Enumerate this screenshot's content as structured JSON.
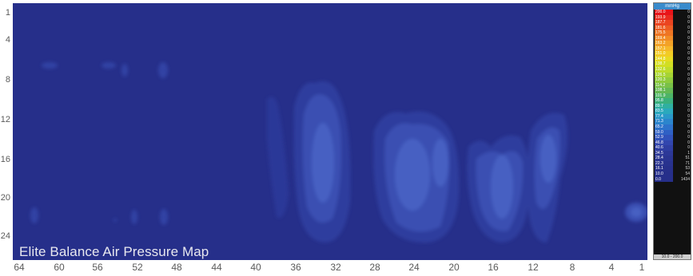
{
  "map_title": "Elite Balance Air Pressure Map",
  "y_ticks": [
    "1",
    "4",
    "8",
    "12",
    "16",
    "20",
    "24"
  ],
  "x_ticks": [
    "64",
    "60",
    "56",
    "52",
    "48",
    "44",
    "40",
    "36",
    "32",
    "28",
    "24",
    "20",
    "16",
    "12",
    "8",
    "4",
    "1"
  ],
  "colors": {
    "background": "#262f8a",
    "region_low": "#2f3d9e",
    "region_mid": "#3a4fb2",
    "region_high": "#4760c2"
  },
  "legend": {
    "unit": "mmHg",
    "range_label": "10.0 - 200.0",
    "rows": [
      {
        "value": "200.0",
        "count": "0",
        "color": "#e8141a"
      },
      {
        "value": "193.9",
        "count": "0",
        "color": "#e92a1e"
      },
      {
        "value": "187.7",
        "count": "0",
        "color": "#eb4420"
      },
      {
        "value": "181.6",
        "count": "0",
        "color": "#ed5d22"
      },
      {
        "value": "175.5",
        "count": "0",
        "color": "#ef7523"
      },
      {
        "value": "169.4",
        "count": "0",
        "color": "#f18c25"
      },
      {
        "value": "163.2",
        "count": "0",
        "color": "#f3a227"
      },
      {
        "value": "157.1",
        "count": "0",
        "color": "#f5b82a"
      },
      {
        "value": "151.0",
        "count": "0",
        "color": "#f2cc24"
      },
      {
        "value": "144.8",
        "count": "0",
        "color": "#e6da20"
      },
      {
        "value": "138.7",
        "count": "0",
        "color": "#d2de22"
      },
      {
        "value": "132.6",
        "count": "0",
        "color": "#bddc2a"
      },
      {
        "value": "126.5",
        "count": "0",
        "color": "#a6d433"
      },
      {
        "value": "120.3",
        "count": "0",
        "color": "#8fcb3c"
      },
      {
        "value": "114.2",
        "count": "0",
        "color": "#79c147"
      },
      {
        "value": "108.1",
        "count": "0",
        "color": "#64b854"
      },
      {
        "value": "101.9",
        "count": "0",
        "color": "#4db466"
      },
      {
        "value": "95.8",
        "count": "0",
        "color": "#3ab07d"
      },
      {
        "value": "89.7",
        "count": "0",
        "color": "#2fb0a0"
      },
      {
        "value": "83.5",
        "count": "0",
        "color": "#2aa9bd"
      },
      {
        "value": "77.4",
        "count": "0",
        "color": "#2a98c9"
      },
      {
        "value": "71.3",
        "count": "0",
        "color": "#2b85cd"
      },
      {
        "value": "65.2",
        "count": "0",
        "color": "#2d72cb"
      },
      {
        "value": "59.0",
        "count": "0",
        "color": "#2f60c5"
      },
      {
        "value": "52.9",
        "count": "0",
        "color": "#3152bb"
      },
      {
        "value": "46.8",
        "count": "0",
        "color": "#3246ae"
      },
      {
        "value": "40.6",
        "count": "0",
        "color": "#2f3ea2"
      },
      {
        "value": "34.5",
        "count": "1",
        "color": "#2c3898"
      },
      {
        "value": "28.4",
        "count": "51",
        "color": "#2a3592"
      },
      {
        "value": "22.3",
        "count": "71",
        "color": "#28328e"
      },
      {
        "value": "16.1",
        "count": "53",
        "color": "#27308b"
      },
      {
        "value": "10.0",
        "count": "54",
        "color": "#262f8a"
      },
      {
        "value": "0.0",
        "count": "1434",
        "color": "#262f8a"
      }
    ]
  }
}
